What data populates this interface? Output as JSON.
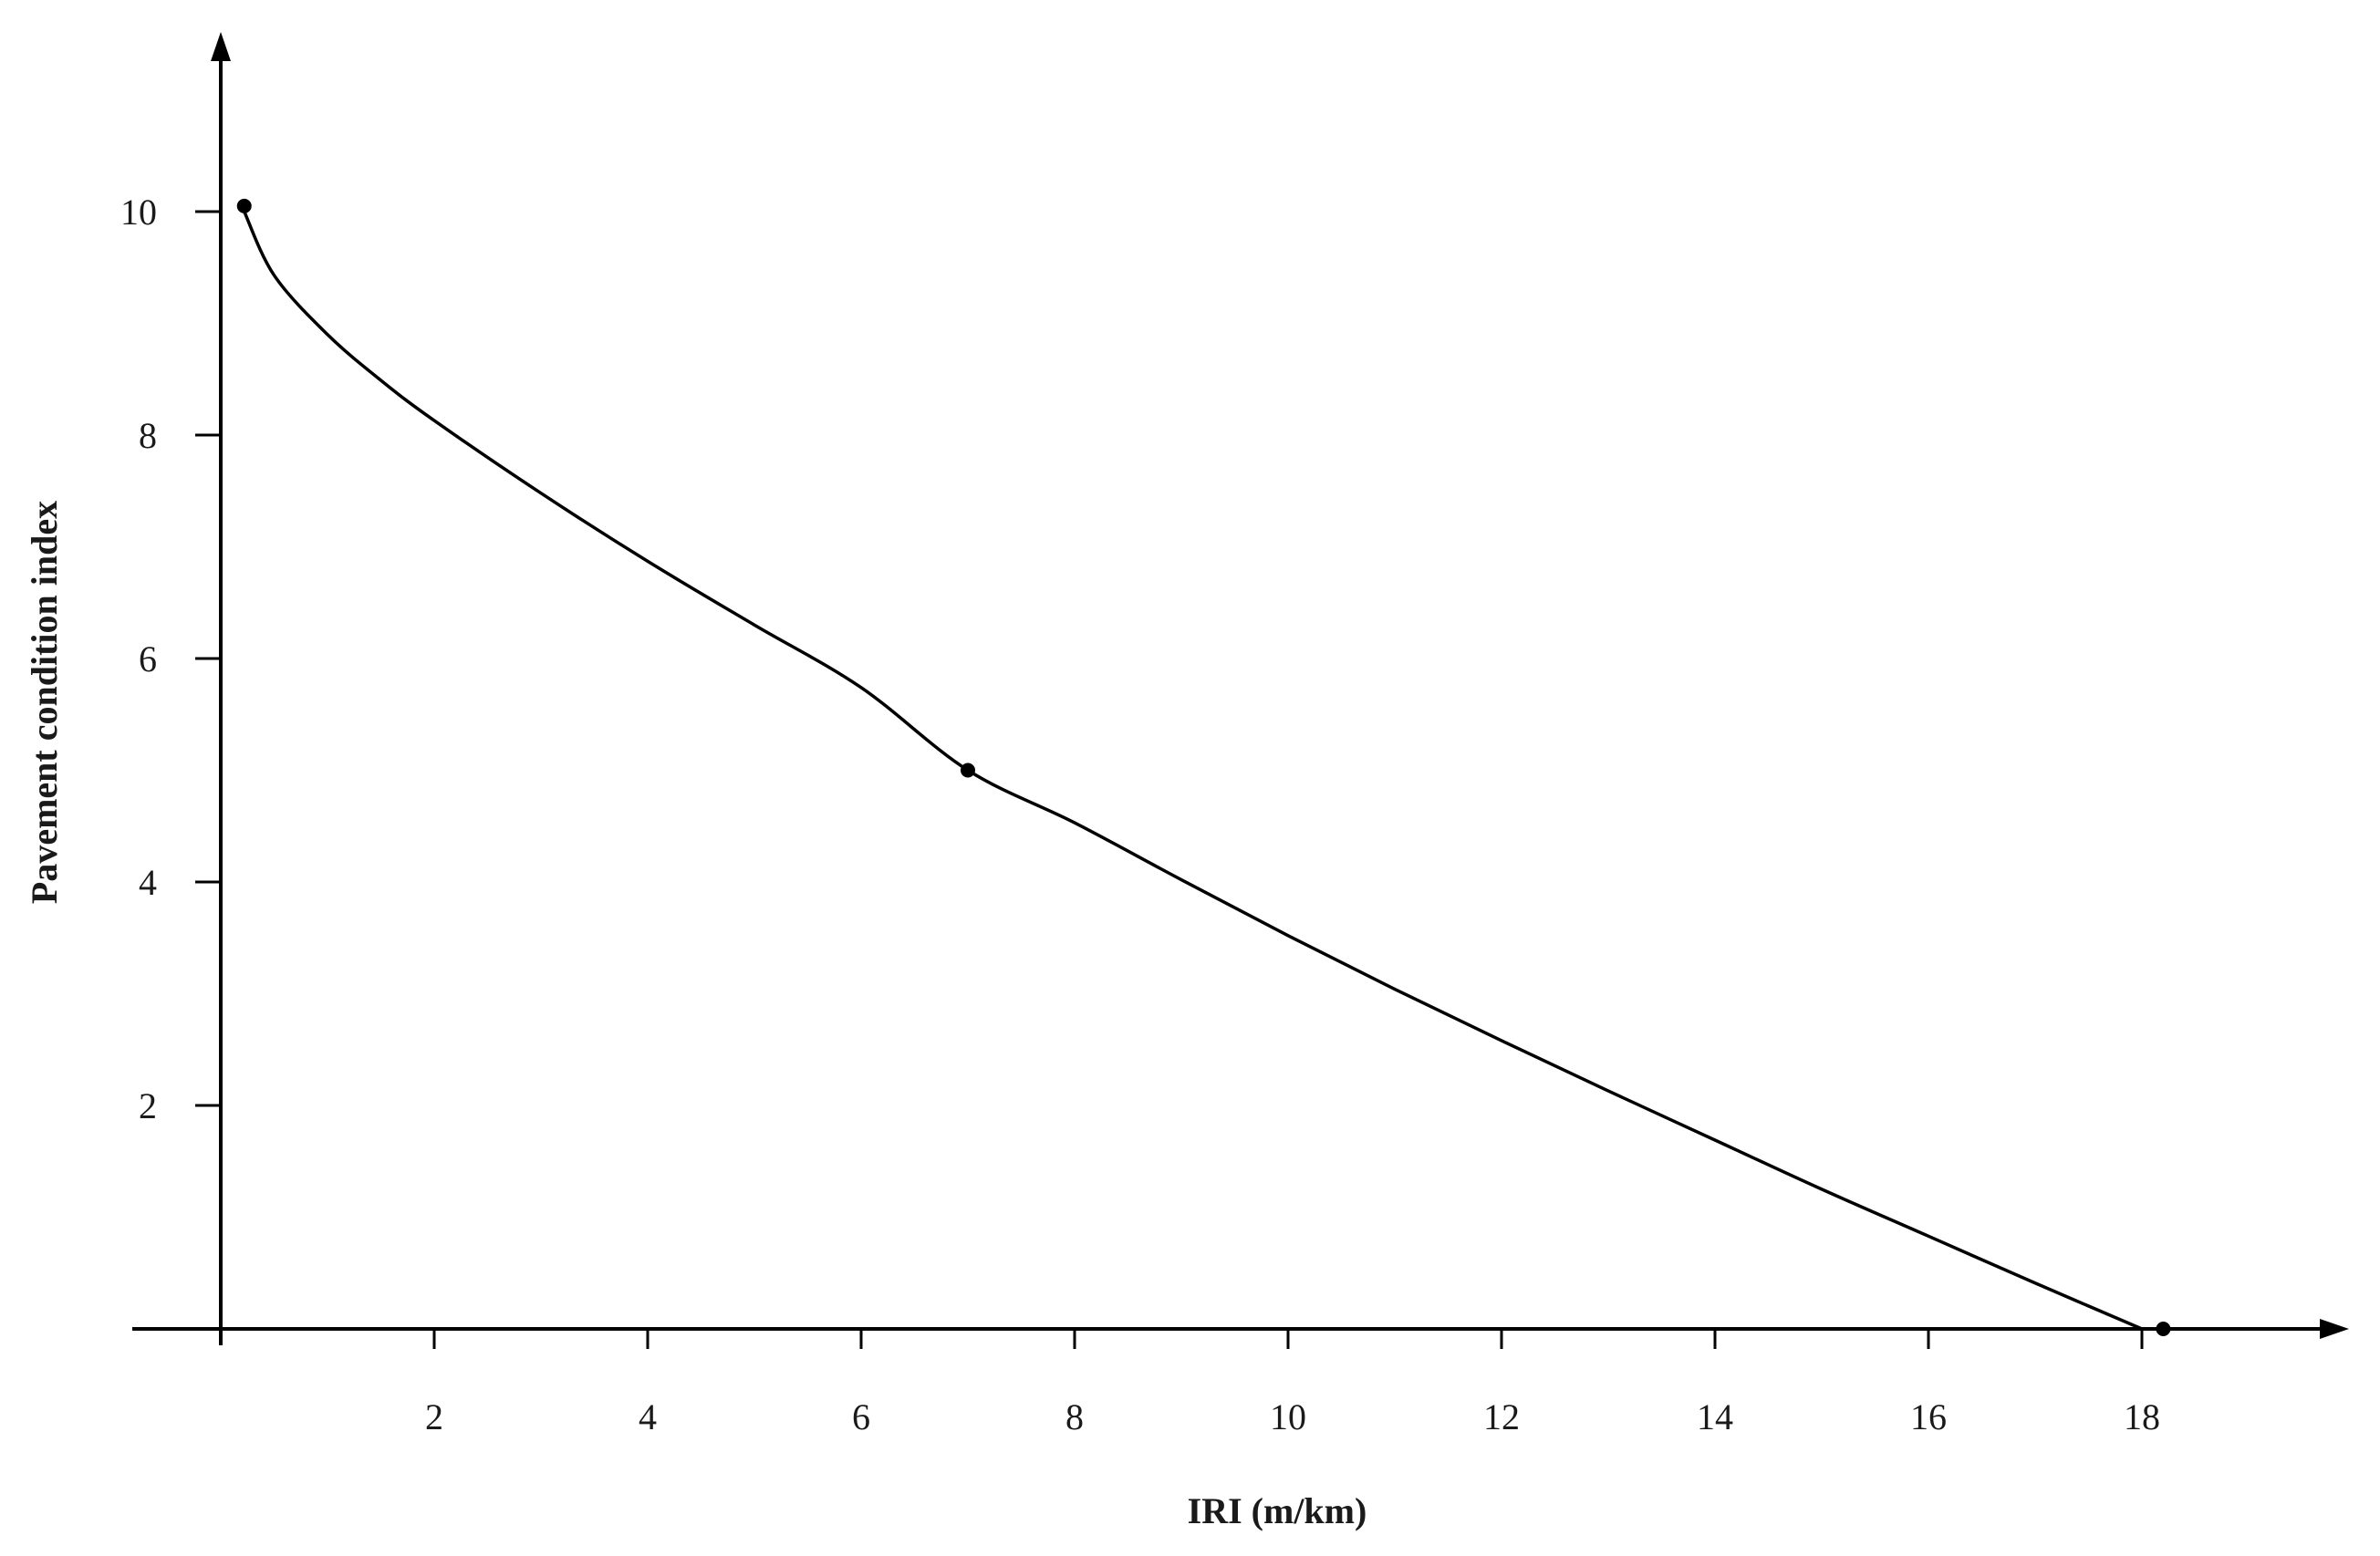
{
  "chart_data": {
    "type": "line",
    "title": "",
    "xlabel": "IRI (m/km)",
    "ylabel": "Pavement condition index",
    "xlim": [
      0,
      20
    ],
    "ylim": [
      0,
      11.5
    ],
    "x_ticks": [
      2,
      4,
      6,
      8,
      10,
      12,
      14,
      16,
      18
    ],
    "y_ticks": [
      2,
      4,
      6,
      8,
      10
    ],
    "grid": false,
    "legend": "none",
    "series": [
      {
        "type": "curve",
        "x": [
          0.22,
          0.5,
          1.0,
          1.5,
          2.0,
          3.0,
          4.0,
          5.0,
          6.0,
          7.0,
          8.0,
          9.0,
          10.0,
          11.0,
          12.0,
          13.0,
          14.0,
          15.0,
          16.0,
          17.0,
          18.0
        ],
        "y": [
          10.0,
          9.43,
          8.9,
          8.49,
          8.13,
          7.48,
          6.87,
          6.3,
          5.74,
          5.0,
          4.53,
          4.02,
          3.52,
          3.04,
          2.58,
          2.13,
          1.69,
          1.25,
          0.83,
          0.41,
          0.0
        ],
        "color": "#000000"
      },
      {
        "type": "points",
        "x": [
          0.22,
          7.0,
          18.2
        ],
        "y": [
          10.05,
          5.0,
          0.0
        ],
        "color": "#000000"
      }
    ]
  }
}
